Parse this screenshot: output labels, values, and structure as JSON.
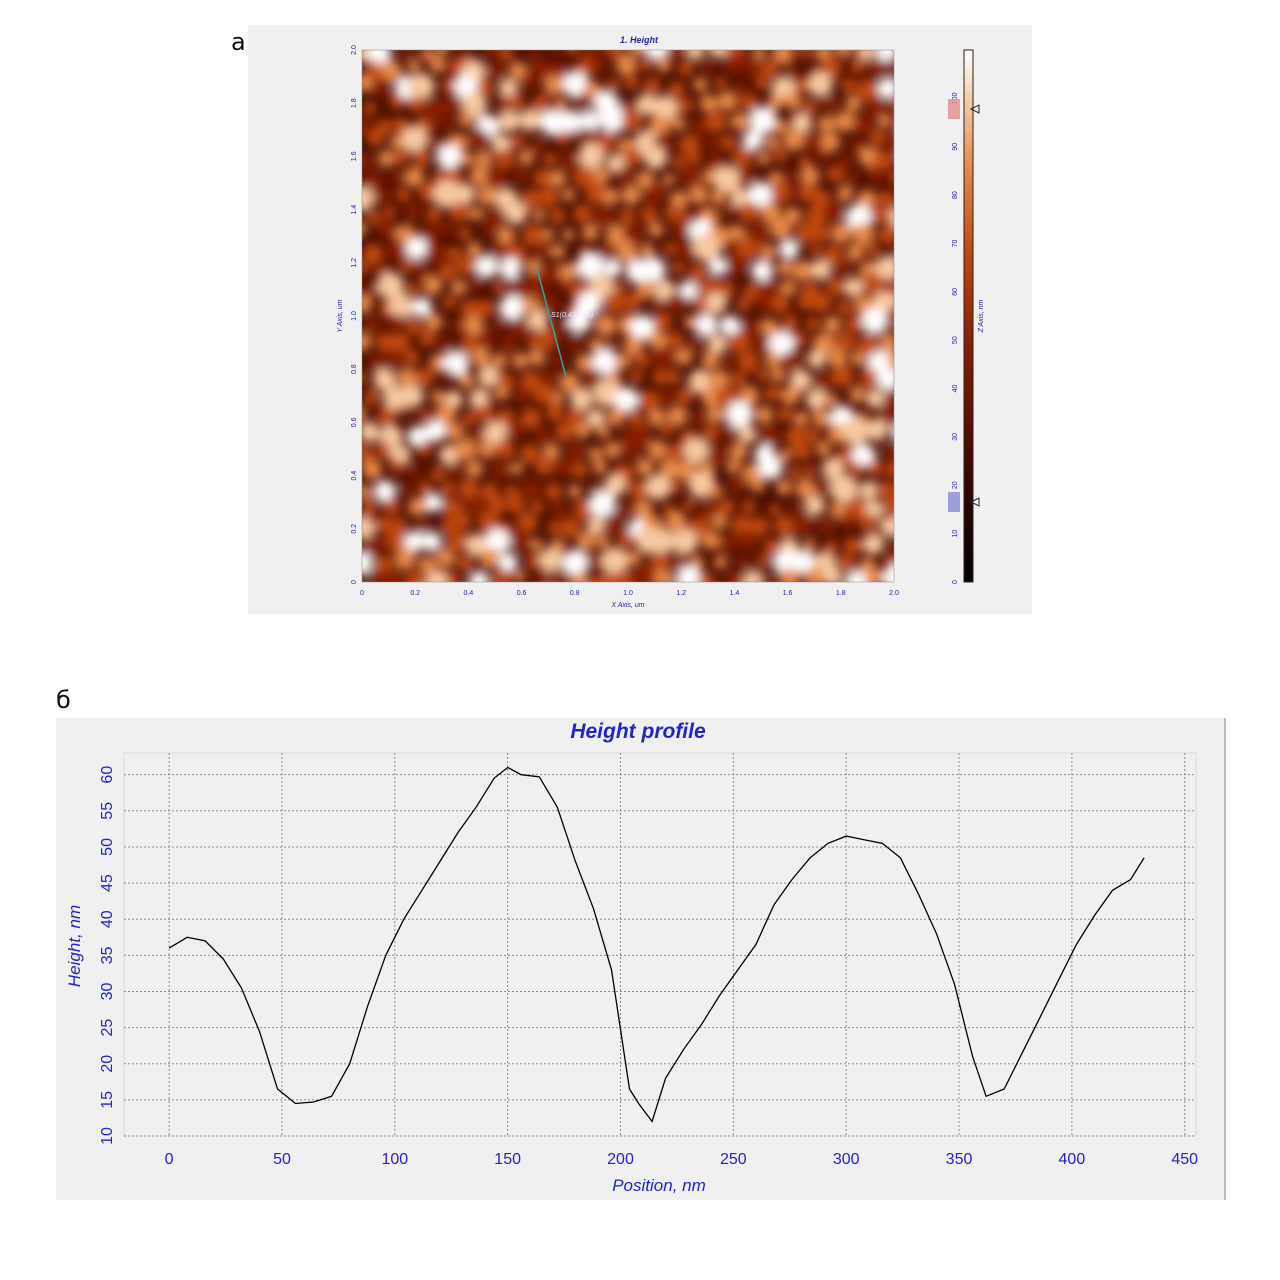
{
  "panels": {
    "a_label": "а",
    "b_label": "б"
  },
  "afm": {
    "title": "1. Height",
    "xlabel": "X Axis, um",
    "ylabel": "Y Axis, um",
    "zlabel": "Z Axis, nm",
    "x_ticks": [
      "0",
      "0.2",
      "0.4",
      "0.6",
      "0.8",
      "1.0",
      "1.2",
      "1.4",
      "1.6",
      "1.8",
      "2.0"
    ],
    "y_ticks": [
      "0",
      "0.2",
      "0.4",
      "0.6",
      "0.8",
      "1.0",
      "1.2",
      "1.4",
      "1.6",
      "1.8",
      "2.0"
    ],
    "z_ticks": [
      "0",
      "10",
      "20",
      "30",
      "40",
      "50",
      "60",
      "70",
      "80",
      "90",
      "100"
    ],
    "z_range": [
      0,
      110
    ],
    "scan_line_label": "S1(0.434 um)",
    "colormap": [
      "#000000",
      "#3a0600",
      "#8a1e00",
      "#c2480f",
      "#e88a4a",
      "#f7c9a0",
      "#ffffff"
    ]
  },
  "chart_data": {
    "type": "line",
    "title": "Height profile",
    "xlabel": "Position, nm",
    "ylabel": "Height, nm",
    "xlim": [
      -20,
      455
    ],
    "ylim": [
      10,
      63
    ],
    "x_ticks": [
      "0",
      "50",
      "100",
      "150",
      "200",
      "250",
      "300",
      "350",
      "400",
      "450"
    ],
    "y_ticks": [
      "10",
      "15",
      "20",
      "25",
      "30",
      "35",
      "40",
      "45",
      "50",
      "55",
      "60"
    ],
    "grid": true,
    "line_color": "#000000",
    "series": [
      {
        "x": [
          0,
          8,
          16,
          24,
          32,
          40,
          48,
          56,
          64,
          72,
          80,
          88,
          96,
          104,
          112,
          120,
          128,
          136,
          144,
          150,
          156,
          164,
          172,
          180,
          188,
          196,
          204,
          208,
          214,
          220,
          228,
          236,
          244,
          252,
          260,
          268,
          276,
          284,
          292,
          300,
          308,
          316,
          324,
          332,
          340,
          348,
          356,
          362,
          370,
          378,
          386,
          394,
          402,
          410,
          418,
          426,
          432
        ],
        "y": [
          36,
          37.5,
          37,
          34.5,
          30.5,
          24.5,
          16.5,
          14.5,
          14.7,
          15.5,
          20,
          28,
          35,
          40,
          44,
          48,
          52,
          55.5,
          59.5,
          61,
          60,
          59.7,
          55.5,
          48,
          41.5,
          33,
          16.5,
          14.5,
          12,
          18,
          22,
          25.5,
          29.5,
          33,
          36.5,
          42,
          45.5,
          48.5,
          50.5,
          51.5,
          51,
          50.5,
          48.5,
          43.5,
          38,
          31,
          21,
          15.5,
          16.5,
          21.5,
          26.5,
          31.5,
          36.5,
          40.5,
          44,
          45.5,
          48.5
        ]
      }
    ]
  }
}
